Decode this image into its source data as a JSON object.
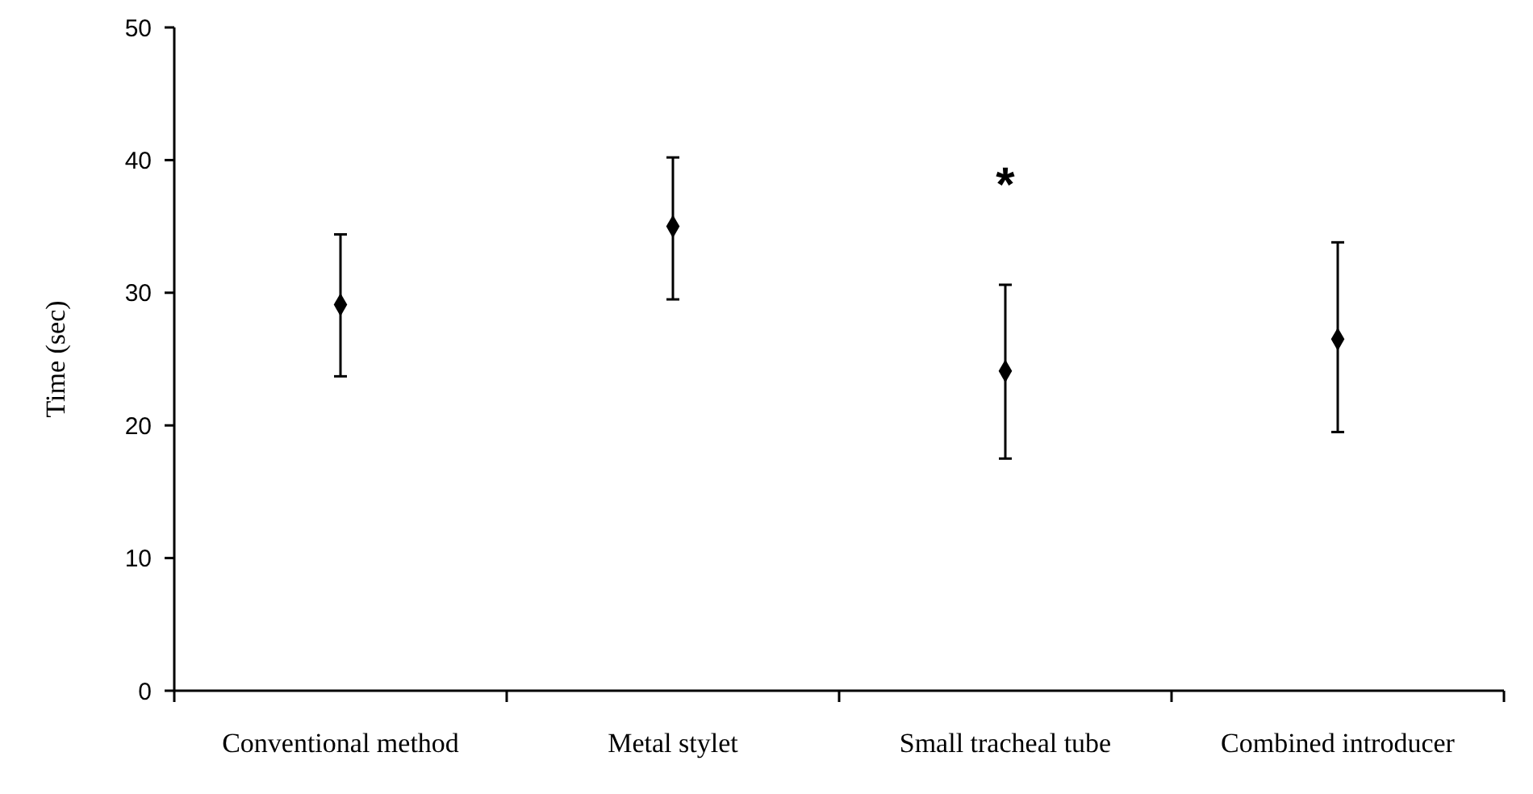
{
  "chart_data": {
    "type": "scatter",
    "ylabel": "Time (sec)",
    "categories": [
      "Conventional method",
      "Metal stylet",
      "Small tracheal tube",
      "Combined introducer"
    ],
    "values": [
      29.1,
      35.0,
      24.1,
      26.5
    ],
    "errors": [
      [
        23.7,
        34.4
      ],
      [
        29.5,
        40.2
      ],
      [
        17.5,
        30.6
      ],
      [
        19.5,
        33.8
      ]
    ],
    "color": "#000000",
    "marker": "diamond",
    "ylim": [
      0,
      50
    ],
    "yticks": [
      0,
      10,
      20,
      30,
      40,
      50
    ],
    "grid": false,
    "annotations": [
      "*"
    ]
  }
}
